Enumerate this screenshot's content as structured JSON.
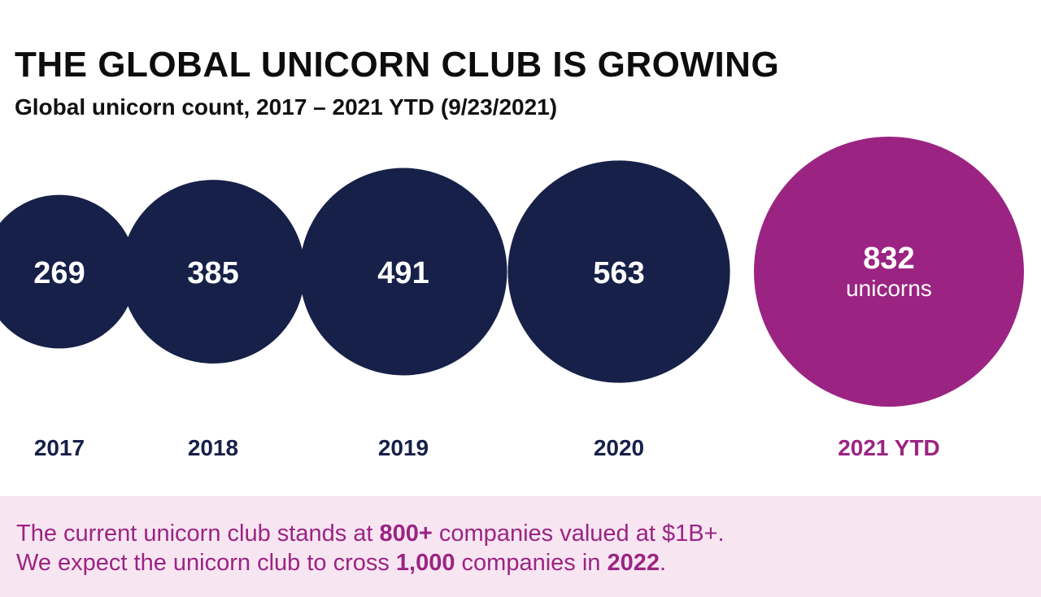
{
  "colors": {
    "past": "#162048",
    "current": "#9b2483",
    "footer_bg": "#f7e6f2",
    "title": "#0d0d0d"
  },
  "chart_data": {
    "type": "bubble",
    "title": "THE GLOBAL UNICORN CLUB IS GROWING",
    "subtitle": "Global unicorn count, 2017 – 2021 YTD (9/23/2021)",
    "categories": [
      "2017",
      "2018",
      "2019",
      "2020",
      "2021 YTD"
    ],
    "values": [
      269,
      385,
      491,
      563,
      832
    ],
    "value_labels": [
      "269",
      "385",
      "491",
      "563",
      "832"
    ],
    "highlight_index": 4,
    "highlight_unit_label": "unicorns",
    "grid": false,
    "legend": "none"
  },
  "footer": {
    "line1": {
      "pre": "The current unicorn club stands at ",
      "bold1": "800+",
      "post": " companies valued at $1B+."
    },
    "line2": {
      "pre": "We expect the unicorn club to cross ",
      "bold1": "1,000",
      "mid": " companies in ",
      "bold2": "2022",
      "post": "."
    }
  }
}
